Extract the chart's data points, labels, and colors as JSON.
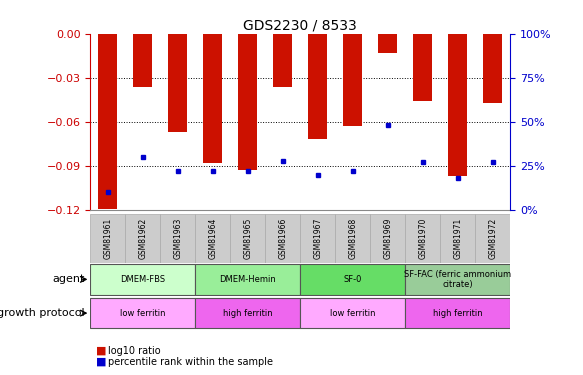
{
  "title": "GDS2230 / 8533",
  "samples": [
    "GSM81961",
    "GSM81962",
    "GSM81963",
    "GSM81964",
    "GSM81965",
    "GSM81966",
    "GSM81967",
    "GSM81968",
    "GSM81969",
    "GSM81970",
    "GSM81971",
    "GSM81972"
  ],
  "log10_ratio": [
    -0.119,
    -0.036,
    -0.067,
    -0.088,
    -0.093,
    -0.036,
    -0.072,
    -0.063,
    -0.013,
    -0.046,
    -0.097,
    -0.047
  ],
  "percentile_rank": [
    10,
    30,
    22,
    22,
    22,
    28,
    20,
    22,
    48,
    27,
    18,
    27
  ],
  "ylim_left": [
    -0.12,
    0
  ],
  "ylim_right": [
    0,
    100
  ],
  "yticks_left": [
    0,
    -0.03,
    -0.06,
    -0.09,
    -0.12
  ],
  "yticks_right": [
    0,
    25,
    50,
    75,
    100
  ],
  "bar_color": "#cc1100",
  "dot_color": "#0000cc",
  "agent_groups": [
    {
      "label": "DMEM-FBS",
      "start": 0,
      "end": 3,
      "color": "#ccffcc"
    },
    {
      "label": "DMEM-Hemin",
      "start": 3,
      "end": 6,
      "color": "#99ee99"
    },
    {
      "label": "SF-0",
      "start": 6,
      "end": 9,
      "color": "#66dd66"
    },
    {
      "label": "SF-FAC (ferric ammonium\ncitrate)",
      "start": 9,
      "end": 12,
      "color": "#99cc99"
    }
  ],
  "growth_groups": [
    {
      "label": "low ferritin",
      "start": 0,
      "end": 3,
      "color": "#ffaaff"
    },
    {
      "label": "high ferritin",
      "start": 3,
      "end": 6,
      "color": "#ee66ee"
    },
    {
      "label": "low ferritin",
      "start": 6,
      "end": 9,
      "color": "#ffaaff"
    },
    {
      "label": "high ferritin",
      "start": 9,
      "end": 12,
      "color": "#ee66ee"
    }
  ],
  "agent_label": "agent",
  "growth_label": "growth protocol",
  "legend_items": [
    {
      "label": "log10 ratio",
      "color": "#cc1100"
    },
    {
      "label": "percentile rank within the sample",
      "color": "#0000cc"
    }
  ],
  "background_color": "#ffffff",
  "left_axis_color": "#cc0000",
  "right_axis_color": "#0000cc",
  "sample_row_color": "#cccccc",
  "border_color": "#888888"
}
